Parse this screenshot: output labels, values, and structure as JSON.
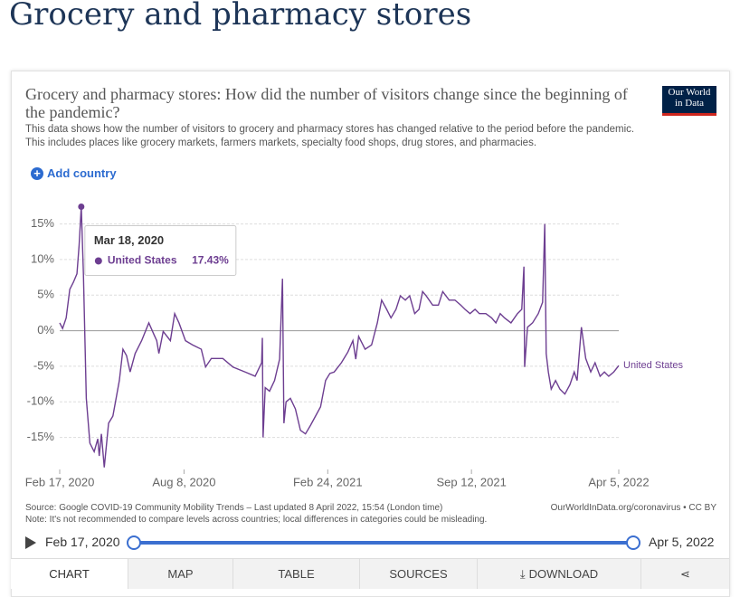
{
  "page": {
    "title": "Grocery and pharmacy stores",
    "card_title": "Grocery and pharmacy stores: How did the number of visitors change since the beginning of the pandemic?",
    "description": [
      "This data shows how the number of visitors to grocery and pharmacy stores has changed relative to the period before the pandemic.",
      "This includes places like grocery markets, farmers markets, specialty food shops, drug stores, and pharmacies."
    ],
    "add_country": "Add country",
    "logo": [
      "Our World",
      "in Data"
    ],
    "source": "Source: Google COVID-19 Community Mobility Trends – Last updated 8 April 2022, 15:54 (London time)",
    "source_link": "OurWorldInData.org/coronavirus • CC BY",
    "note": "Note: It's not recommended to compare levels across countries; local differences in categories could be misleading.",
    "timeline": {
      "start": "Feb 17, 2020",
      "end": "Apr 5, 2022"
    },
    "tabs": [
      "CHART",
      "MAP",
      "TABLE",
      "SOURCES",
      "DOWNLOAD"
    ]
  },
  "chart_data": {
    "type": "line",
    "x": [
      "2020-02-17",
      "2020-02-21",
      "2020-02-26",
      "2020-03-02",
      "2020-03-07",
      "2020-03-12",
      "2020-03-15",
      "2020-03-18",
      "2020-03-21",
      "2020-03-25",
      "2020-03-30",
      "2020-04-05",
      "2020-04-10",
      "2020-04-12",
      "2020-04-15",
      "2020-04-19",
      "2020-04-25",
      "2020-05-01",
      "2020-05-10",
      "2020-05-15",
      "2020-05-20",
      "2020-05-25",
      "2020-06-01",
      "2020-06-10",
      "2020-06-20",
      "2020-06-27",
      "2020-07-01",
      "2020-07-04",
      "2020-07-10",
      "2020-07-20",
      "2020-07-26",
      "2020-08-01",
      "2020-08-10",
      "2020-08-20",
      "2020-09-01",
      "2020-09-07",
      "2020-09-15",
      "2020-10-01",
      "2020-10-15",
      "2020-11-01",
      "2020-11-15",
      "2020-11-24",
      "2020-11-25",
      "2020-11-26",
      "2020-11-29",
      "2020-12-05",
      "2020-12-12",
      "2020-12-19",
      "2020-12-23",
      "2020-12-25",
      "2020-12-28",
      "2021-01-03",
      "2021-01-10",
      "2021-01-17",
      "2021-01-24",
      "2021-01-31",
      "2021-02-07",
      "2021-02-14",
      "2021-02-21",
      "2021-02-27",
      "2021-03-05",
      "2021-03-15",
      "2021-03-24",
      "2021-03-31",
      "2021-04-04",
      "2021-04-08",
      "2021-04-17",
      "2021-04-26",
      "2021-05-04",
      "2021-05-10",
      "2021-05-17",
      "2021-05-23",
      "2021-05-30",
      "2021-06-05",
      "2021-06-12",
      "2021-06-18",
      "2021-06-25",
      "2021-07-01",
      "2021-07-06",
      "2021-07-11",
      "2021-07-20",
      "2021-07-28",
      "2021-08-03",
      "2021-08-12",
      "2021-08-20",
      "2021-08-28",
      "2021-09-03",
      "2021-09-10",
      "2021-09-17",
      "2021-09-23",
      "2021-10-02",
      "2021-10-10",
      "2021-10-16",
      "2021-10-22",
      "2021-10-28",
      "2021-11-06",
      "2021-11-15",
      "2021-11-21",
      "2021-11-24",
      "2021-11-25",
      "2021-11-29",
      "2021-12-06",
      "2021-12-14",
      "2021-12-20",
      "2021-12-23",
      "2021-12-25",
      "2021-12-28",
      "2022-01-01",
      "2022-01-07",
      "2022-01-13",
      "2022-01-20",
      "2022-01-27",
      "2022-02-02",
      "2022-02-06",
      "2022-02-12",
      "2022-02-18",
      "2022-02-25",
      "2022-03-03",
      "2022-03-10",
      "2022-03-16",
      "2022-03-22",
      "2022-03-29",
      "2022-04-05"
    ],
    "series": [
      {
        "name": "United States",
        "color": "#6d3e91",
        "values": [
          1.1,
          0.3,
          1.8,
          5.8,
          6.8,
          8,
          12,
          17.43,
          8,
          -9.5,
          -15.8,
          -17,
          -15.2,
          -17.6,
          -14.5,
          -19.2,
          -13,
          -12,
          -7,
          -2.6,
          -3.5,
          -5.8,
          -3.2,
          -1.4,
          1.1,
          -0.5,
          -1.4,
          -3.2,
          -0.1,
          -1.4,
          2.4,
          1.1,
          -1.4,
          -2,
          -2.6,
          -5.1,
          -3.9,
          -3.9,
          -5.1,
          -5.8,
          -6.4,
          -4.5,
          -1,
          -15,
          -8,
          -8.5,
          -7,
          -4,
          7.3,
          -13,
          -10,
          -9.5,
          -11,
          -14,
          -14.5,
          -13.3,
          -12,
          -10.7,
          -7,
          -6,
          -5.8,
          -4.5,
          -3,
          -1.4,
          -4,
          -0.8,
          -2.6,
          -2,
          1.1,
          4.3,
          3,
          1.8,
          3,
          4.9,
          4.3,
          4.9,
          2.4,
          3,
          5.5,
          4.9,
          3.6,
          3.6,
          5.5,
          4.3,
          4.3,
          3.6,
          3,
          2.4,
          3,
          2.4,
          2.4,
          1.8,
          1.1,
          2.4,
          1.8,
          1.1,
          2.4,
          3,
          9,
          -5.1,
          0.5,
          1.1,
          2.4,
          4,
          15,
          -3.2,
          -5.8,
          -8.2,
          -7,
          -8.2,
          -8.9,
          -7.6,
          -5.8,
          -7,
          0.5,
          -3.9,
          -5.8,
          -4.5,
          -6.4,
          -5.8,
          -6.4,
          -5.8,
          -4.9
        ]
      }
    ],
    "xlim": [
      "2020-02-17",
      "2022-04-05"
    ],
    "xticks": [
      {
        "value": "2020-02-17",
        "label": "Feb 17, 2020"
      },
      {
        "value": "2020-08-08",
        "label": "Aug 8, 2020"
      },
      {
        "value": "2021-02-24",
        "label": "Feb 24, 2021"
      },
      {
        "value": "2021-09-12",
        "label": "Sep 12, 2021"
      },
      {
        "value": "2022-04-05",
        "label": "Apr 5, 2022"
      }
    ],
    "ylim": [
      -19.5,
      18
    ],
    "yticks": [
      {
        "value": 15,
        "label": "15%"
      },
      {
        "value": 10,
        "label": "10%"
      },
      {
        "value": 5,
        "label": "5%"
      },
      {
        "value": 0,
        "label": "0%"
      },
      {
        "value": -5,
        "label": "-5%"
      },
      {
        "value": -10,
        "label": "-10%"
      },
      {
        "value": -15,
        "label": "-15%"
      }
    ],
    "grid": true,
    "highlight_index": 7,
    "tooltip": {
      "date": "Mar 18, 2020",
      "value": "17.43%"
    }
  }
}
